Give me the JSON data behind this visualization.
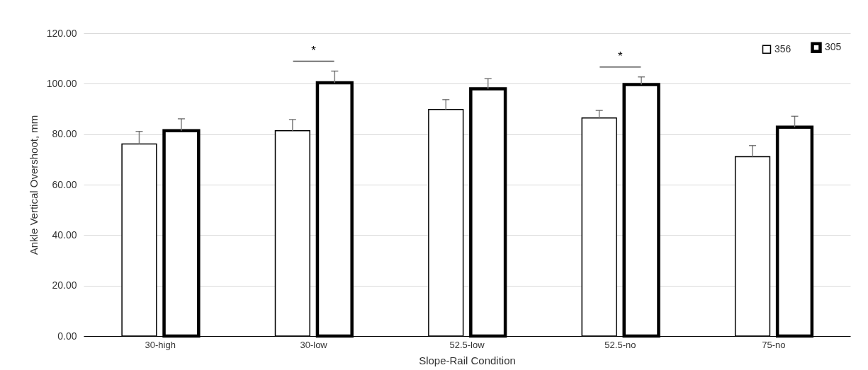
{
  "chart_data": {
    "type": "bar",
    "categories": [
      "30-high",
      "30-low",
      "52.5-low",
      "52.5-no",
      "75-no"
    ],
    "series": [
      {
        "name": "356",
        "color": "#ffffff",
        "values": [
          76.1,
          81.4,
          89.8,
          86.4,
          71.1
        ],
        "errors": [
          [
            76.1,
            81.1
          ],
          [
            81.4,
            85.8
          ],
          [
            89.8,
            93.7
          ],
          [
            86.4,
            89.4
          ],
          [
            71.1,
            75.5
          ]
        ]
      },
      {
        "name": "305",
        "color": "#ffffff",
        "values": [
          81.4,
          100.4,
          98.0,
          99.7,
          82.8
        ],
        "errors": [
          [
            81.4,
            86.1
          ],
          [
            100.4,
            105.0
          ],
          [
            98.0,
            102.0
          ],
          [
            99.7,
            102.7
          ],
          [
            82.8,
            87.1
          ]
        ]
      }
    ],
    "xlabel": "Slope-Rail Condition",
    "ylabel": "Ankle Vertical Overshoot, mm",
    "ylim": [
      0,
      120
    ],
    "yticks": [
      {
        "value": 0,
        "label": "0.00"
      },
      {
        "value": 20,
        "label": "20.00"
      },
      {
        "value": 40,
        "label": "40.00"
      },
      {
        "value": 60,
        "label": "60.00"
      },
      {
        "value": 80,
        "label": "80.00"
      },
      {
        "value": 100,
        "label": "100.00"
      },
      {
        "value": 120,
        "label": "120.00"
      }
    ],
    "grid": "y",
    "legend": "top right",
    "annotations": [
      "*",
      "*"
    ]
  }
}
